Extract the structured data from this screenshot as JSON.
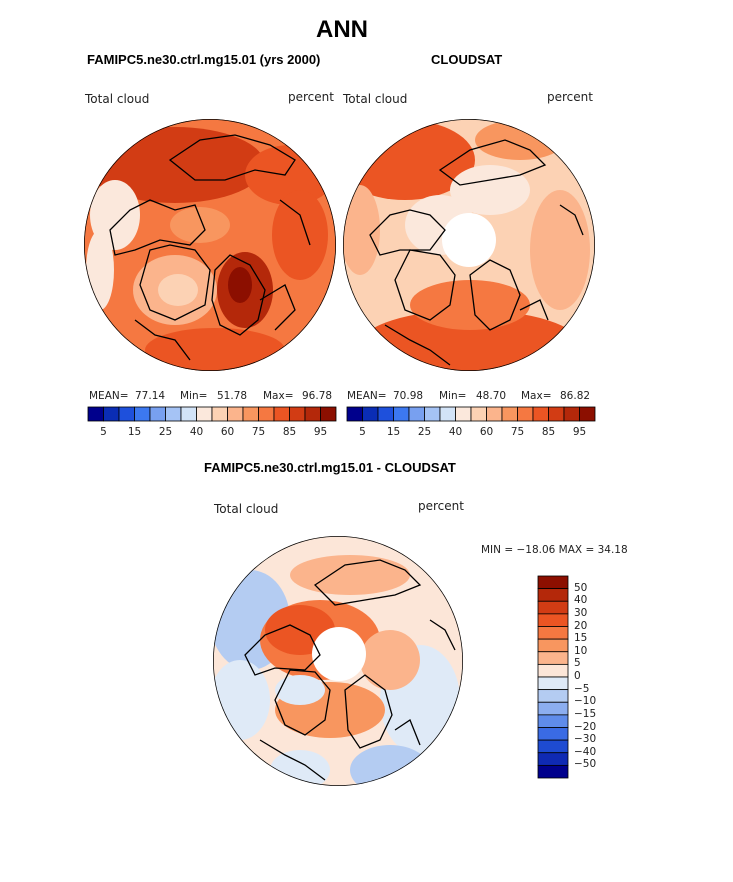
{
  "figure": {
    "title": "ANN",
    "panels": [
      {
        "header": "FAMIPC5.ne30.ctrl.mg15.01 (yrs 2000)",
        "field_label": "Total cloud",
        "units_label": "percent",
        "stats": {
          "mean_label": "MEAN=",
          "mean": "77.14",
          "min_label": "Min=",
          "min": "51.78",
          "max_label": "Max=",
          "max": "96.78"
        }
      },
      {
        "header": "CLOUDSAT",
        "field_label": "Total cloud",
        "units_label": "percent",
        "stats": {
          "mean_label": "MEAN=",
          "mean": "70.98",
          "min_label": "Min=",
          "min": "48.70",
          "max_label": "Max=",
          "max": "86.82"
        }
      },
      {
        "header": "FAMIPC5.ne30.ctrl.mg15.01 - CLOUDSAT",
        "field_label": "Total cloud",
        "units_label": "percent",
        "minmax_text": "MIN = −18.06 MAX =  34.18"
      }
    ]
  },
  "chart_data": [
    {
      "type": "heatmap",
      "projection": "north polar stereographic",
      "title": "FAMIPC5.ne30.ctrl.mg15.01 (yrs 2000)",
      "variable": "Total cloud",
      "units": "percent",
      "mean": 77.14,
      "min": 51.78,
      "max": 96.78,
      "colorbar_ticks": [
        "5",
        "15",
        "25",
        "40",
        "60",
        "75",
        "85",
        "95"
      ],
      "colorbar_colors": [
        "#00008c",
        "#0a2db5",
        "#1e50dc",
        "#3c78f0",
        "#78a0f0",
        "#a5c3f5",
        "#d2e3f7",
        "#fbe8dc",
        "#fcd2b4",
        "#fbb48c",
        "#f8965f",
        "#f57841",
        "#eb5523",
        "#d23c14",
        "#b4280a",
        "#8c0f00"
      ]
    },
    {
      "type": "heatmap",
      "projection": "north polar stereographic",
      "title": "CLOUDSAT",
      "variable": "Total cloud",
      "units": "percent",
      "mean": 70.98,
      "min": 48.7,
      "max": 86.82,
      "colorbar_ticks": [
        "5",
        "15",
        "25",
        "40",
        "60",
        "75",
        "85",
        "95"
      ],
      "colorbar_colors": [
        "#00008c",
        "#0a2db5",
        "#1e50dc",
        "#3c78f0",
        "#78a0f0",
        "#a5c3f5",
        "#d2e3f7",
        "#fbe8dc",
        "#fcd2b4",
        "#fbb48c",
        "#f8965f",
        "#f57841",
        "#eb5523",
        "#d23c14",
        "#b4280a",
        "#8c0f00"
      ]
    },
    {
      "type": "heatmap",
      "projection": "north polar stereographic",
      "title": "FAMIPC5.ne30.ctrl.mg15.01 - CLOUDSAT",
      "variable": "Total cloud",
      "units": "percent",
      "min": -18.06,
      "max": 34.18,
      "colorbar_ticks": [
        "50",
        "40",
        "30",
        "20",
        "15",
        "10",
        "5",
        "0",
        "−5",
        "−10",
        "−15",
        "−20",
        "−30",
        "−40",
        "−50"
      ],
      "colorbar_colors": [
        "#8c0f00",
        "#b4280a",
        "#d23c14",
        "#eb5523",
        "#f57841",
        "#f8965f",
        "#fbb48c",
        "#fce6d8",
        "#dfeaf7",
        "#b4ccf2",
        "#8caef0",
        "#5f8ceb",
        "#3a6be4",
        "#1e4bd2",
        "#0f2ab4",
        "#00008c"
      ]
    }
  ]
}
